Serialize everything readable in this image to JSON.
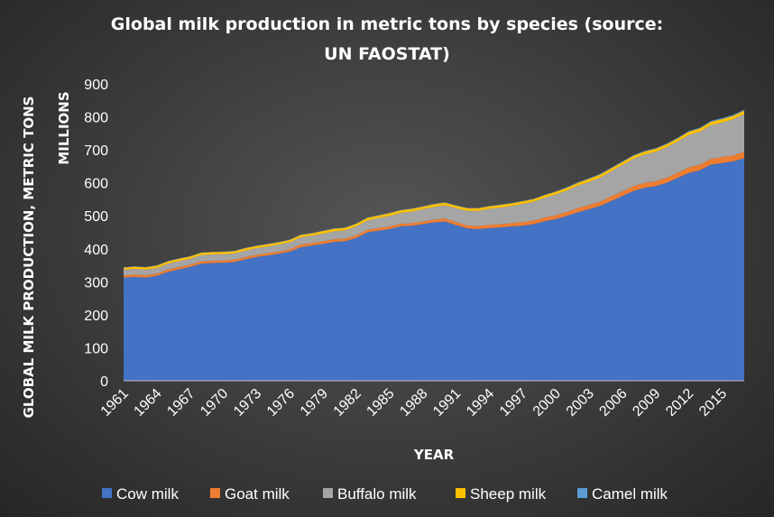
{
  "chart_data": {
    "type": "area",
    "stacked": true,
    "title": "Global milk production in metric tons by species (source: UN FAOSTAT)",
    "title_lines": [
      "Global milk production in metric tons by species (source:",
      "UN FAOSTAT)"
    ],
    "xlabel": "YEAR",
    "ylabel": "GLOBAL MILK PRODUCTION, METRIC TONS",
    "yunit_label": "MILLIONS",
    "ylim": [
      0,
      900
    ],
    "yticks": [
      0,
      100,
      200,
      300,
      400,
      500,
      600,
      700,
      800,
      900
    ],
    "grid": false,
    "legend_position": "bottom",
    "x": [
      1961,
      1962,
      1963,
      1964,
      1965,
      1966,
      1967,
      1968,
      1969,
      1970,
      1971,
      1972,
      1973,
      1974,
      1975,
      1976,
      1977,
      1978,
      1979,
      1980,
      1981,
      1982,
      1983,
      1984,
      1985,
      1986,
      1987,
      1988,
      1989,
      1990,
      1991,
      1992,
      1993,
      1994,
      1995,
      1996,
      1997,
      1998,
      1999,
      2000,
      2001,
      2002,
      2003,
      2004,
      2005,
      2006,
      2007,
      2008,
      2009,
      2010,
      2011,
      2012,
      2013,
      2014,
      2015,
      2016,
      2017
    ],
    "xtick_labels": [
      "1961",
      "1964",
      "1967",
      "1970",
      "1973",
      "1976",
      "1979",
      "1982",
      "1985",
      "1988",
      "1991",
      "1994",
      "1997",
      "2000",
      "2003",
      "2006",
      "2009",
      "2012",
      "2015"
    ],
    "series": [
      {
        "name": "Cow milk",
        "color": "#4472c4",
        "values": [
          313,
          315,
          313,
          318,
          330,
          338,
          345,
          355,
          357,
          358,
          360,
          368,
          375,
          380,
          385,
          392,
          405,
          410,
          415,
          421,
          423,
          433,
          450,
          455,
          460,
          468,
          470,
          475,
          480,
          483,
          472,
          462,
          460,
          463,
          465,
          468,
          470,
          475,
          484,
          490,
          500,
          511,
          520,
          530,
          545,
          560,
          575,
          585,
          590,
          600,
          615,
          630,
          638,
          655,
          660,
          665,
          675
        ]
      },
      {
        "name": "Goat milk",
        "color": "#ed7d31",
        "values": [
          7,
          7,
          7,
          7,
          7,
          7,
          7,
          7,
          7,
          7,
          7,
          7,
          7,
          7,
          7,
          7,
          8,
          8,
          8,
          8,
          8,
          8,
          8,
          8,
          8,
          8,
          8,
          8,
          9,
          9,
          9,
          9,
          9,
          10,
          10,
          10,
          11,
          11,
          11,
          12,
          12,
          13,
          13,
          13,
          14,
          14,
          15,
          15,
          15,
          16,
          16,
          17,
          17,
          18,
          18,
          18,
          19
        ]
      },
      {
        "name": "Buffalo milk",
        "color": "#a5a5a5",
        "values": [
          17,
          17,
          17,
          17,
          18,
          18,
          18,
          19,
          19,
          19,
          19,
          20,
          20,
          20,
          21,
          21,
          22,
          22,
          23,
          24,
          25,
          27,
          28,
          30,
          32,
          33,
          35,
          37,
          38,
          40,
          42,
          44,
          46,
          48,
          50,
          52,
          55,
          57,
          60,
          63,
          65,
          68,
          70,
          73,
          76,
          80,
          83,
          86,
          89,
          92,
          95,
          98,
          100,
          102,
          105,
          110,
          115
        ]
      },
      {
        "name": "Sheep milk",
        "color": "#ffc000",
        "values": [
          6,
          7,
          7,
          7,
          7,
          7,
          7,
          7,
          7,
          7,
          7,
          7,
          7,
          7,
          7,
          7,
          7,
          7,
          8,
          8,
          8,
          8,
          8,
          8,
          8,
          8,
          8,
          8,
          8,
          8,
          8,
          8,
          8,
          8,
          8,
          8,
          8,
          8,
          8,
          8,
          8,
          8,
          9,
          9,
          9,
          9,
          9,
          9,
          9,
          9,
          9,
          10,
          10,
          10,
          10,
          10,
          10
        ]
      },
      {
        "name": "Camel milk",
        "color": "#5b9bd5",
        "values": [
          1,
          1,
          1,
          1,
          1,
          1,
          1,
          1,
          1,
          1,
          1,
          1,
          1,
          1,
          1,
          1,
          1,
          1,
          1,
          1,
          1,
          1,
          1,
          1,
          1,
          1,
          1,
          1,
          1,
          1,
          1,
          1,
          1,
          1,
          1,
          1,
          1,
          1,
          1,
          1,
          2,
          2,
          2,
          2,
          2,
          2,
          2,
          2,
          2,
          2,
          2,
          2,
          2,
          3,
          3,
          3,
          3
        ]
      }
    ]
  }
}
